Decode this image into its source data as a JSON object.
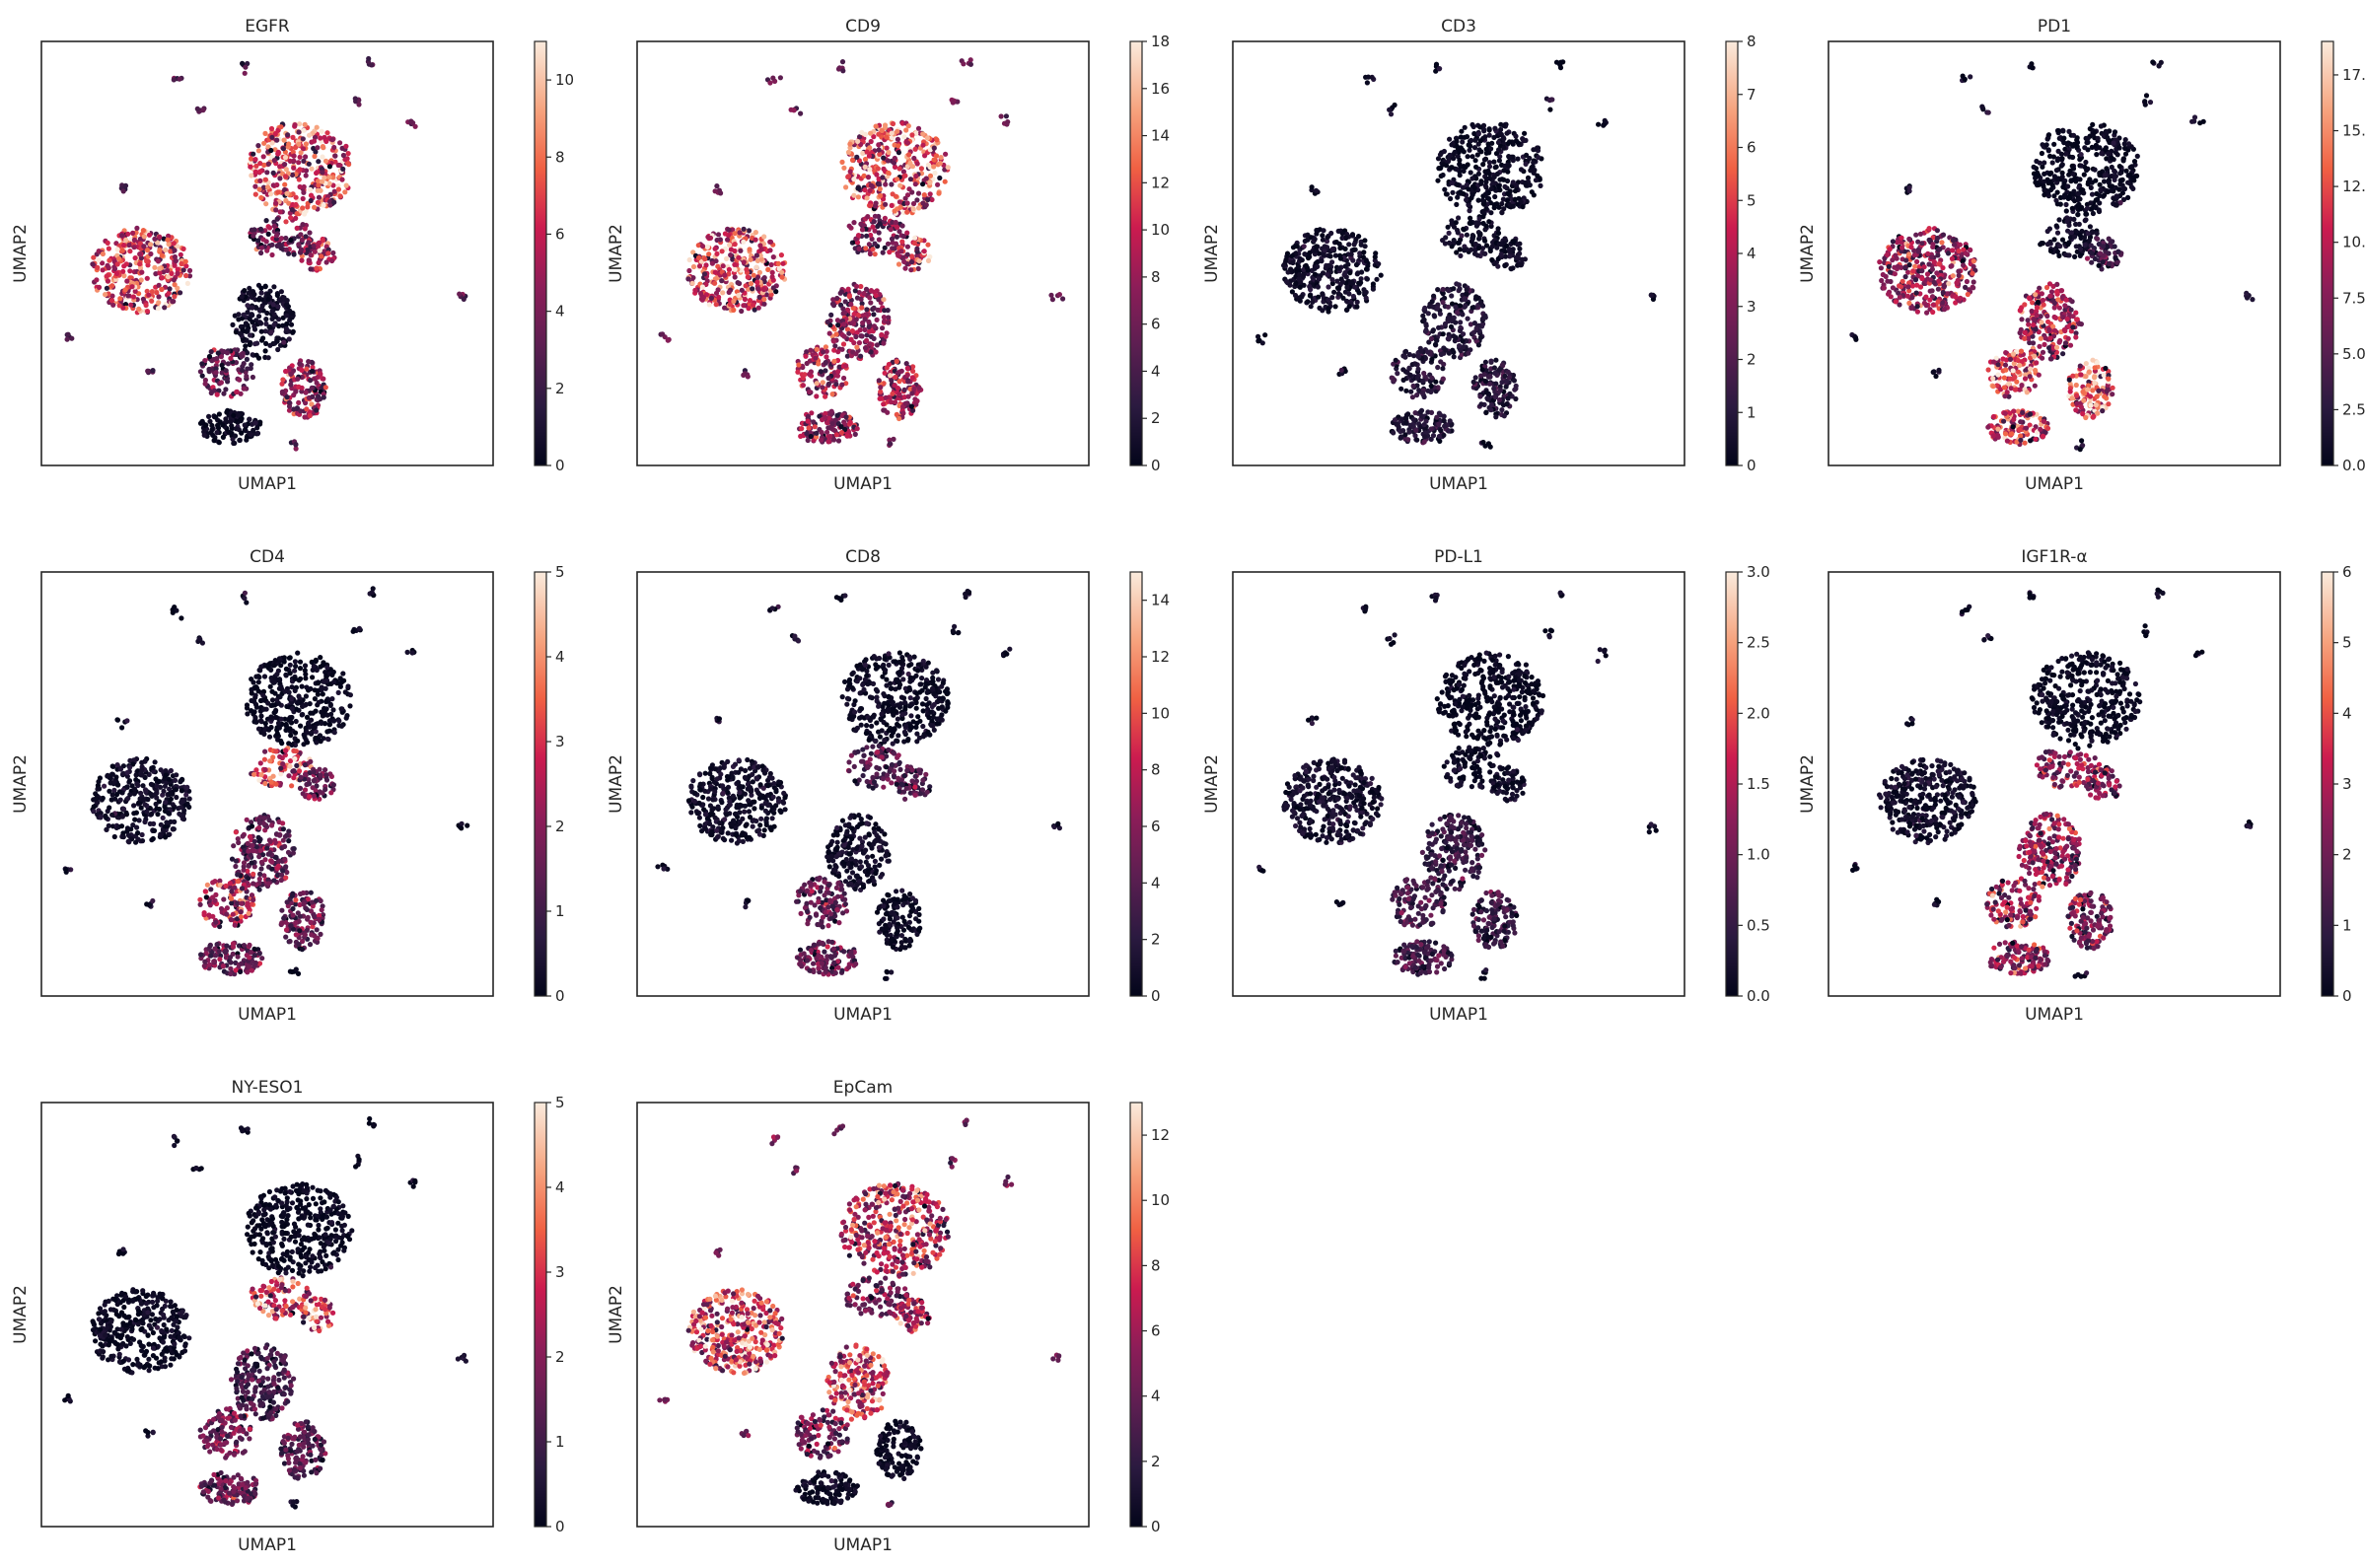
{
  "chart_data": [
    {
      "type": "scatter",
      "title": "EGFR",
      "xlabel": "UMAP1",
      "ylabel": "UMAP2",
      "colorbar": {
        "range": [
          0,
          11
        ],
        "ticks": [
          "0",
          "2",
          "4",
          "6",
          "8",
          "10"
        ],
        "tick_values": [
          0,
          2,
          4,
          6,
          8,
          10
        ]
      },
      "cmap": "rocket",
      "grid": false,
      "expression": {
        "left-cluster": 0.55,
        "top-cluster": 0.6,
        "top-center": 0.3,
        "center-cluster": 0.05,
        "mid-right-cluster": 0.45,
        "lower-left-cluster": 0.3,
        "bottom-right-cluster": 0.4,
        "bottom-cluster": 0.03,
        "outliers": 0.25
      }
    },
    {
      "type": "scatter",
      "title": "CD9",
      "xlabel": "UMAP1",
      "ylabel": "UMAP2",
      "colorbar": {
        "range": [
          0,
          18
        ],
        "ticks": [
          "0",
          "2",
          "4",
          "6",
          "8",
          "10",
          "12",
          "14",
          "16",
          "18"
        ],
        "tick_values": [
          0,
          2,
          4,
          6,
          8,
          10,
          12,
          14,
          16,
          18
        ]
      },
      "cmap": "rocket",
      "grid": false,
      "expression": {
        "left-cluster": 0.6,
        "top-cluster": 0.62,
        "top-center": 0.35,
        "center-cluster": 0.4,
        "mid-right-cluster": 0.5,
        "lower-left-cluster": 0.45,
        "bottom-right-cluster": 0.45,
        "bottom-cluster": 0.35,
        "outliers": 0.3
      }
    },
    {
      "type": "scatter",
      "title": "CD3",
      "xlabel": "UMAP1",
      "ylabel": "UMAP2",
      "colorbar": {
        "range": [
          0,
          8
        ],
        "ticks": [
          "0",
          "1",
          "2",
          "3",
          "4",
          "5",
          "6",
          "7",
          "8"
        ],
        "tick_values": [
          0,
          1,
          2,
          3,
          4,
          5,
          6,
          7,
          8
        ]
      },
      "cmap": "rocket",
      "grid": false,
      "expression": {
        "left-cluster": 0.05,
        "top-cluster": 0.03,
        "top-center": 0.05,
        "center-cluster": 0.1,
        "mid-right-cluster": 0.05,
        "lower-left-cluster": 0.12,
        "bottom-right-cluster": 0.12,
        "bottom-cluster": 0.1,
        "outliers": 0.02
      }
    },
    {
      "type": "scatter",
      "title": "PD1",
      "xlabel": "UMAP1",
      "ylabel": "UMAP2",
      "colorbar": {
        "range": [
          0,
          19
        ],
        "ticks": [
          "0.0",
          "2.5",
          "5.0",
          "7.5",
          "10.0",
          "12.5",
          "15.0",
          "17.5"
        ],
        "tick_values": [
          0,
          2.5,
          5,
          7.5,
          10,
          12.5,
          15,
          17.5
        ]
      },
      "cmap": "rocket",
      "grid": false,
      "expression": {
        "left-cluster": 0.4,
        "top-cluster": 0.02,
        "top-center": 0.05,
        "center-cluster": 0.45,
        "mid-right-cluster": 0.2,
        "lower-left-cluster": 0.6,
        "bottom-right-cluster": 0.65,
        "bottom-cluster": 0.55,
        "outliers": 0.05
      }
    },
    {
      "type": "scatter",
      "title": "CD4",
      "xlabel": "UMAP1",
      "ylabel": "UMAP2",
      "colorbar": {
        "range": [
          0,
          5
        ],
        "ticks": [
          "0",
          "1",
          "2",
          "3",
          "4",
          "5"
        ],
        "tick_values": [
          0,
          1,
          2,
          3,
          4,
          5
        ]
      },
      "cmap": "rocket",
      "grid": false,
      "expression": {
        "left-cluster": 0.05,
        "top-cluster": 0.02,
        "top-center": 0.55,
        "center-cluster": 0.3,
        "mid-right-cluster": 0.3,
        "lower-left-cluster": 0.45,
        "bottom-right-cluster": 0.3,
        "bottom-cluster": 0.3,
        "outliers": 0.02
      }
    },
    {
      "type": "scatter",
      "title": "CD8",
      "xlabel": "UMAP1",
      "ylabel": "UMAP2",
      "colorbar": {
        "range": [
          0,
          15
        ],
        "ticks": [
          "0",
          "2",
          "4",
          "6",
          "8",
          "10",
          "12",
          "14"
        ],
        "tick_values": [
          0,
          2,
          4,
          6,
          8,
          10,
          12,
          14
        ]
      },
      "cmap": "rocket",
      "grid": false,
      "expression": {
        "left-cluster": 0.05,
        "top-cluster": 0.03,
        "top-center": 0.25,
        "center-cluster": 0.05,
        "mid-right-cluster": 0.25,
        "lower-left-cluster": 0.3,
        "bottom-right-cluster": 0.03,
        "bottom-cluster": 0.3,
        "outliers": 0.02
      }
    },
    {
      "type": "scatter",
      "title": "PD-L1",
      "xlabel": "UMAP1",
      "ylabel": "UMAP2",
      "colorbar": {
        "range": [
          0,
          3
        ],
        "ticks": [
          "0.0",
          "0.5",
          "1.0",
          "1.5",
          "2.0",
          "2.5",
          "3.0"
        ],
        "tick_values": [
          0,
          0.5,
          1,
          1.5,
          2,
          2.5,
          3
        ]
      },
      "cmap": "rocket",
      "grid": false,
      "expression": {
        "left-cluster": 0.06,
        "top-cluster": 0.02,
        "top-center": 0.03,
        "center-cluster": 0.15,
        "mid-right-cluster": 0.05,
        "lower-left-cluster": 0.2,
        "bottom-right-cluster": 0.18,
        "bottom-cluster": 0.18,
        "outliers": 0.02
      }
    },
    {
      "type": "scatter",
      "title": "IGF1R-α",
      "xlabel": "UMAP1",
      "ylabel": "UMAP2",
      "colorbar": {
        "range": [
          0,
          6
        ],
        "ticks": [
          "0",
          "1",
          "2",
          "3",
          "4",
          "5",
          "6"
        ],
        "tick_values": [
          0,
          1,
          2,
          3,
          4,
          5,
          6
        ]
      },
      "cmap": "rocket",
      "grid": false,
      "expression": {
        "left-cluster": 0.05,
        "top-cluster": 0.03,
        "top-center": 0.4,
        "center-cluster": 0.4,
        "mid-right-cluster": 0.35,
        "lower-left-cluster": 0.45,
        "bottom-right-cluster": 0.35,
        "bottom-cluster": 0.4,
        "outliers": 0.02
      }
    },
    {
      "type": "scatter",
      "title": "NY-ESO1",
      "xlabel": "UMAP1",
      "ylabel": "UMAP2",
      "colorbar": {
        "range": [
          0,
          5
        ],
        "ticks": [
          "0",
          "1",
          "2",
          "3",
          "4",
          "5"
        ],
        "tick_values": [
          0,
          1,
          2,
          3,
          4,
          5
        ]
      },
      "cmap": "rocket",
      "grid": false,
      "expression": {
        "left-cluster": 0.03,
        "top-cluster": 0.02,
        "top-center": 0.55,
        "center-cluster": 0.2,
        "mid-right-cluster": 0.65,
        "lower-left-cluster": 0.3,
        "bottom-right-cluster": 0.25,
        "bottom-cluster": 0.3,
        "outliers": 0.02
      }
    },
    {
      "type": "scatter",
      "title": "EpCam",
      "xlabel": "UMAP1",
      "ylabel": "UMAP2",
      "colorbar": {
        "range": [
          0,
          13
        ],
        "ticks": [
          "0",
          "2",
          "4",
          "6",
          "8",
          "10",
          "12"
        ],
        "tick_values": [
          0,
          2,
          4,
          6,
          8,
          10,
          12
        ]
      },
      "cmap": "rocket",
      "grid": false,
      "expression": {
        "left-cluster": 0.58,
        "top-cluster": 0.5,
        "top-center": 0.3,
        "center-cluster": 0.55,
        "mid-right-cluster": 0.5,
        "lower-left-cluster": 0.35,
        "bottom-right-cluster": 0.03,
        "bottom-cluster": 0.03,
        "outliers": 0.3
      }
    }
  ]
}
